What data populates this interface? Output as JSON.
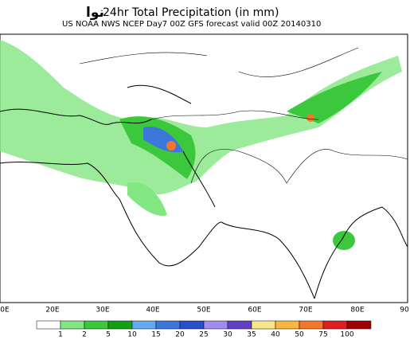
{
  "header": {
    "logo": "نوا",
    "title": "24hr Total Precipitation (in mm)",
    "subtitle": "US NOAA NWS NCEP Day7 00Z GFS forecast valid 00Z 20140310"
  },
  "map": {
    "lon_labels": [
      "0E",
      "20E",
      "30E",
      "40E",
      "50E",
      "60E",
      "70E",
      "80E",
      "90"
    ]
  },
  "colorbar": {
    "labels": [
      "1",
      "2",
      "5",
      "10",
      "15",
      "20",
      "25",
      "30",
      "35",
      "40",
      "50",
      "75",
      "100"
    ],
    "colors": [
      "#ffffff",
      "#82e682",
      "#3cc83c",
      "#14a014",
      "#64aaf0",
      "#3c78dc",
      "#2850c8",
      "#a08cf0",
      "#6440c8",
      "#f8e68c",
      "#fab440",
      "#f07828",
      "#e11e1e",
      "#a00000"
    ]
  }
}
